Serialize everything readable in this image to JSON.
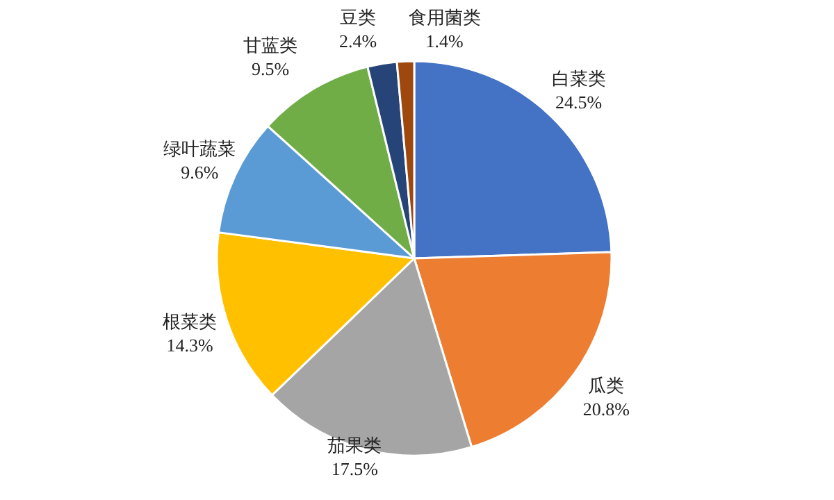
{
  "chart_data": {
    "type": "pie",
    "categories": [
      "白菜类",
      "瓜类",
      "茄果类",
      "根菜类",
      "绿叶蔬菜",
      "甘蓝类",
      "豆类",
      "食用菌类"
    ],
    "values": [
      24.5,
      20.8,
      17.5,
      14.3,
      9.6,
      9.5,
      2.4,
      1.4
    ],
    "colors": [
      "#4472c4",
      "#ed7d31",
      "#a5a5a5",
      "#ffc000",
      "#5b9bd5",
      "#70ad47",
      "#264478",
      "#9e480e"
    ],
    "value_labels": [
      "24.5%",
      "20.8%",
      "17.5%",
      "14.3%",
      "9.6%",
      "9.5%",
      "2.4%",
      "1.4%"
    ]
  }
}
